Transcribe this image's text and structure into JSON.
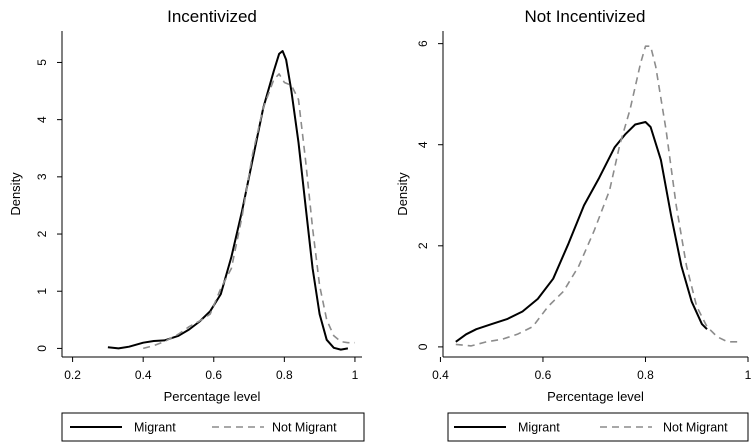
{
  "chart_data": [
    {
      "type": "line",
      "title": "Incentivized",
      "xlabel": "Percentage level",
      "ylabel": "Density",
      "xlim": [
        0.17,
        1.02
      ],
      "ylim": [
        -0.15,
        5.55
      ],
      "xticks": [
        0.2,
        0.4,
        0.6,
        0.8,
        1
      ],
      "xtick_labels": [
        "0.2",
        "0.4",
        "0.6",
        "0.8",
        "1"
      ],
      "yticks": [
        0,
        1,
        2,
        3,
        4,
        5
      ],
      "ytick_labels": [
        "0",
        "1",
        "2",
        "3",
        "4",
        "5"
      ],
      "grid": false,
      "legend_position": "bottom",
      "series": [
        {
          "name": "Migrant",
          "style": "solid",
          "x": [
            0.3,
            0.33,
            0.36,
            0.4,
            0.43,
            0.46,
            0.5,
            0.53,
            0.56,
            0.59,
            0.62,
            0.65,
            0.68,
            0.71,
            0.74,
            0.77,
            0.785,
            0.795,
            0.805,
            0.82,
            0.84,
            0.86,
            0.88,
            0.9,
            0.92,
            0.94,
            0.96,
            0.98
          ],
          "y": [
            0.02,
            0.0,
            0.03,
            0.1,
            0.13,
            0.14,
            0.22,
            0.33,
            0.47,
            0.65,
            0.95,
            1.6,
            2.4,
            3.3,
            4.2,
            4.85,
            5.15,
            5.2,
            5.05,
            4.5,
            3.6,
            2.5,
            1.4,
            0.6,
            0.15,
            0.01,
            -0.02,
            0.0
          ]
        },
        {
          "name": "Not Migrant",
          "style": "dashed",
          "x": [
            0.4,
            0.43,
            0.46,
            0.5,
            0.53,
            0.56,
            0.59,
            0.62,
            0.65,
            0.68,
            0.71,
            0.74,
            0.77,
            0.785,
            0.8,
            0.82,
            0.84,
            0.86,
            0.88,
            0.9,
            0.92,
            0.94,
            0.96,
            0.98,
            1.0
          ],
          "y": [
            0.0,
            0.05,
            0.12,
            0.25,
            0.38,
            0.48,
            0.6,
            1.05,
            1.4,
            2.3,
            3.4,
            4.2,
            4.7,
            4.8,
            4.65,
            4.6,
            4.35,
            3.3,
            2.1,
            1.1,
            0.5,
            0.22,
            0.12,
            0.1,
            0.1
          ]
        }
      ]
    },
    {
      "type": "line",
      "title": "Not Incentivized",
      "xlabel": "Percentage level",
      "ylabel": "Density",
      "xlim": [
        0.405,
        1.0
      ],
      "ylim": [
        -0.2,
        6.25
      ],
      "xticks": [
        0.4,
        0.6,
        0.8,
        1
      ],
      "xtick_labels": [
        "0.4",
        "0.6",
        "0.8",
        "1"
      ],
      "yticks": [
        0,
        2,
        4,
        6
      ],
      "ytick_labels": [
        "0",
        "2",
        "4",
        "6"
      ],
      "grid": false,
      "legend_position": "bottom",
      "series": [
        {
          "name": "Migrant",
          "style": "solid",
          "x": [
            0.43,
            0.45,
            0.47,
            0.5,
            0.53,
            0.56,
            0.59,
            0.62,
            0.65,
            0.68,
            0.71,
            0.74,
            0.76,
            0.78,
            0.8,
            0.81,
            0.83,
            0.85,
            0.87,
            0.89,
            0.91,
            0.92
          ],
          "y": [
            0.1,
            0.25,
            0.35,
            0.45,
            0.55,
            0.7,
            0.95,
            1.35,
            2.05,
            2.8,
            3.35,
            3.95,
            4.2,
            4.4,
            4.45,
            4.35,
            3.7,
            2.6,
            1.6,
            0.9,
            0.45,
            0.35
          ]
        },
        {
          "name": "Not Migrant",
          "style": "dashed",
          "x": [
            0.43,
            0.46,
            0.49,
            0.52,
            0.55,
            0.58,
            0.61,
            0.64,
            0.67,
            0.7,
            0.73,
            0.75,
            0.77,
            0.79,
            0.8,
            0.81,
            0.82,
            0.84,
            0.86,
            0.88,
            0.9,
            0.92,
            0.94,
            0.96,
            0.98
          ],
          "y": [
            0.05,
            0.02,
            0.1,
            0.15,
            0.25,
            0.4,
            0.8,
            1.1,
            1.6,
            2.3,
            3.1,
            4.0,
            4.7,
            5.6,
            5.95,
            5.95,
            5.55,
            4.3,
            2.8,
            1.6,
            0.8,
            0.4,
            0.2,
            0.1,
            0.1
          ]
        }
      ]
    }
  ],
  "colors": {
    "line": "#000000",
    "axis": "#000000",
    "background": "#ffffff",
    "dashed_line": "#8c8c8c"
  }
}
